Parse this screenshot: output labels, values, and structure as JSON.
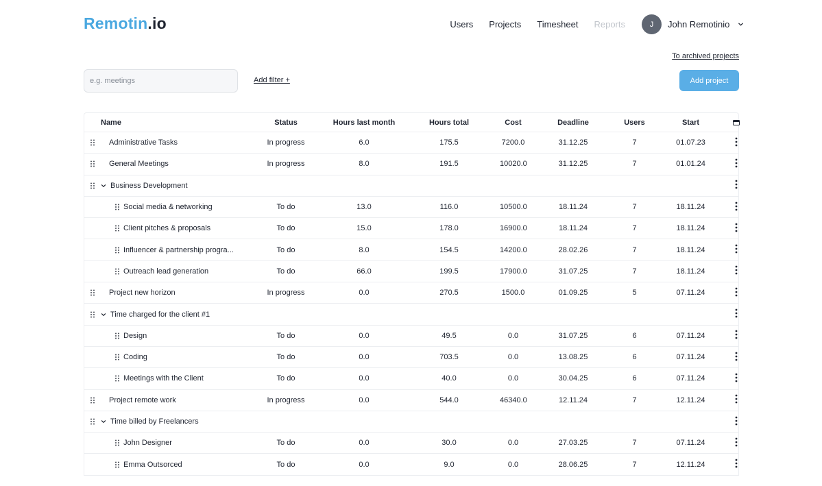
{
  "logo": {
    "brand": "Remotin",
    "tld": ".io"
  },
  "nav": {
    "users": "Users",
    "projects": "Projects",
    "timesheet": "Timesheet",
    "reports": "Reports"
  },
  "user": {
    "initial": "J",
    "name": "John Remotinio"
  },
  "links": {
    "archived": "To archived projects",
    "add_filter": "Add filter +"
  },
  "search": {
    "placeholder": "e.g. meetings",
    "value": ""
  },
  "buttons": {
    "add_project": "Add project"
  },
  "icons": {
    "drag": "drag-handle-icon",
    "caret": "chevron-down-icon",
    "menu": "kebab-menu-icon",
    "columns": "columns-icon"
  },
  "table": {
    "headers": {
      "name": "Name",
      "status": "Status",
      "hours_last_month": "Hours last month",
      "hours_total": "Hours total",
      "cost": "Cost",
      "deadline": "Deadline",
      "users": "Users",
      "start": "Start"
    },
    "rows": [
      {
        "name": "Administrative Tasks",
        "level": 0,
        "group": false,
        "status": "In progress",
        "hours_last_month": "6.0",
        "hours_total": "175.5",
        "cost": "7200.0",
        "deadline": "31.12.25",
        "users": "7",
        "start": "01.07.23"
      },
      {
        "name": "General Meetings",
        "level": 0,
        "group": false,
        "status": "In progress",
        "hours_last_month": "8.0",
        "hours_total": "191.5",
        "cost": "10020.0",
        "deadline": "31.12.25",
        "users": "7",
        "start": "01.01.24"
      },
      {
        "name": "Business Development",
        "level": 0,
        "group": true,
        "status": "",
        "hours_last_month": "",
        "hours_total": "",
        "cost": "",
        "deadline": "",
        "users": "",
        "start": ""
      },
      {
        "name": "Social media & networking",
        "level": 1,
        "group": false,
        "status": "To do",
        "hours_last_month": "13.0",
        "hours_total": "116.0",
        "cost": "10500.0",
        "deadline": "18.11.24",
        "users": "7",
        "start": "18.11.24"
      },
      {
        "name": "Client pitches & proposals",
        "level": 1,
        "group": false,
        "status": "To do",
        "hours_last_month": "15.0",
        "hours_total": "178.0",
        "cost": "16900.0",
        "deadline": "18.11.24",
        "users": "7",
        "start": "18.11.24"
      },
      {
        "name": "Influencer & partnership progra...",
        "level": 1,
        "group": false,
        "status": "To do",
        "hours_last_month": "8.0",
        "hours_total": "154.5",
        "cost": "14200.0",
        "deadline": "28.02.26",
        "users": "7",
        "start": "18.11.24"
      },
      {
        "name": "Outreach lead generation",
        "level": 1,
        "group": false,
        "status": "To do",
        "hours_last_month": "66.0",
        "hours_total": "199.5",
        "cost": "17900.0",
        "deadline": "31.07.25",
        "users": "7",
        "start": "18.11.24"
      },
      {
        "name": "Project new horizon",
        "level": 0,
        "group": false,
        "status": "In progress",
        "hours_last_month": "0.0",
        "hours_total": "270.5",
        "cost": "1500.0",
        "deadline": "01.09.25",
        "users": "5",
        "start": "07.11.24"
      },
      {
        "name": "Time charged for the client #1",
        "level": 0,
        "group": true,
        "status": "",
        "hours_last_month": "",
        "hours_total": "",
        "cost": "",
        "deadline": "",
        "users": "",
        "start": ""
      },
      {
        "name": "Design",
        "level": 1,
        "group": false,
        "status": "To do",
        "hours_last_month": "0.0",
        "hours_total": "49.5",
        "cost": "0.0",
        "deadline": "31.07.25",
        "users": "6",
        "start": "07.11.24"
      },
      {
        "name": "Coding",
        "level": 1,
        "group": false,
        "status": "To do",
        "hours_last_month": "0.0",
        "hours_total": "703.5",
        "cost": "0.0",
        "deadline": "13.08.25",
        "users": "6",
        "start": "07.11.24"
      },
      {
        "name": "Meetings with the Client",
        "level": 1,
        "group": false,
        "status": "To do",
        "hours_last_month": "0.0",
        "hours_total": "40.0",
        "cost": "0.0",
        "deadline": "30.04.25",
        "users": "6",
        "start": "07.11.24"
      },
      {
        "name": "Project remote work",
        "level": 0,
        "group": false,
        "status": "In progress",
        "hours_last_month": "0.0",
        "hours_total": "544.0",
        "cost": "46340.0",
        "deadline": "12.11.24",
        "users": "7",
        "start": "12.11.24"
      },
      {
        "name": "Time billed by Freelancers",
        "level": 0,
        "group": true,
        "status": "",
        "hours_last_month": "",
        "hours_total": "",
        "cost": "",
        "deadline": "",
        "users": "",
        "start": ""
      },
      {
        "name": "John Designer",
        "level": 1,
        "group": false,
        "status": "To do",
        "hours_last_month": "0.0",
        "hours_total": "30.0",
        "cost": "0.0",
        "deadline": "27.03.25",
        "users": "7",
        "start": "07.11.24"
      },
      {
        "name": "Emma Outsorced",
        "level": 1,
        "group": false,
        "status": "To do",
        "hours_last_month": "0.0",
        "hours_total": "9.0",
        "cost": "0.0",
        "deadline": "28.06.25",
        "users": "7",
        "start": "12.11.24"
      }
    ]
  }
}
